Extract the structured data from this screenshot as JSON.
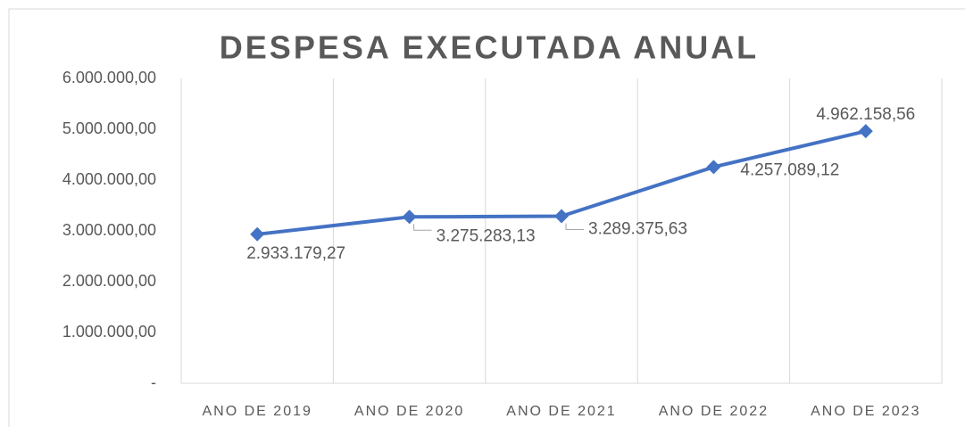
{
  "chart_data": {
    "type": "line",
    "title": "DESPESA EXECUTADA ANUAL",
    "categories": [
      "ANO DE 2019",
      "ANO DE 2020",
      "ANO DE 2021",
      "ANO DE 2022",
      "ANO DE 2023"
    ],
    "series": [
      {
        "name": "DESPESA EXECUTADA ANUAL",
        "color": "#4472c4",
        "values": [
          2933179.27,
          3275283.13,
          3289375.63,
          4257089.12,
          4962158.56
        ],
        "value_labels": [
          "2.933.179,27",
          "3.275.283,13",
          "3.289.375,63",
          "4.257.089,12",
          "4.962.158,56"
        ]
      }
    ],
    "ylim": [
      0,
      6000000
    ],
    "yticks": [
      {
        "value": 0,
        "label": "-"
      },
      {
        "value": 1000000,
        "label": "1.000.000,00"
      },
      {
        "value": 2000000,
        "label": "2.000.000,00"
      },
      {
        "value": 3000000,
        "label": "3.000.000,00"
      },
      {
        "value": 4000000,
        "label": "4.000.000,00"
      },
      {
        "value": 5000000,
        "label": "5.000.000,00"
      },
      {
        "value": 6000000,
        "label": "6.000.000,00"
      }
    ],
    "grid": true
  }
}
